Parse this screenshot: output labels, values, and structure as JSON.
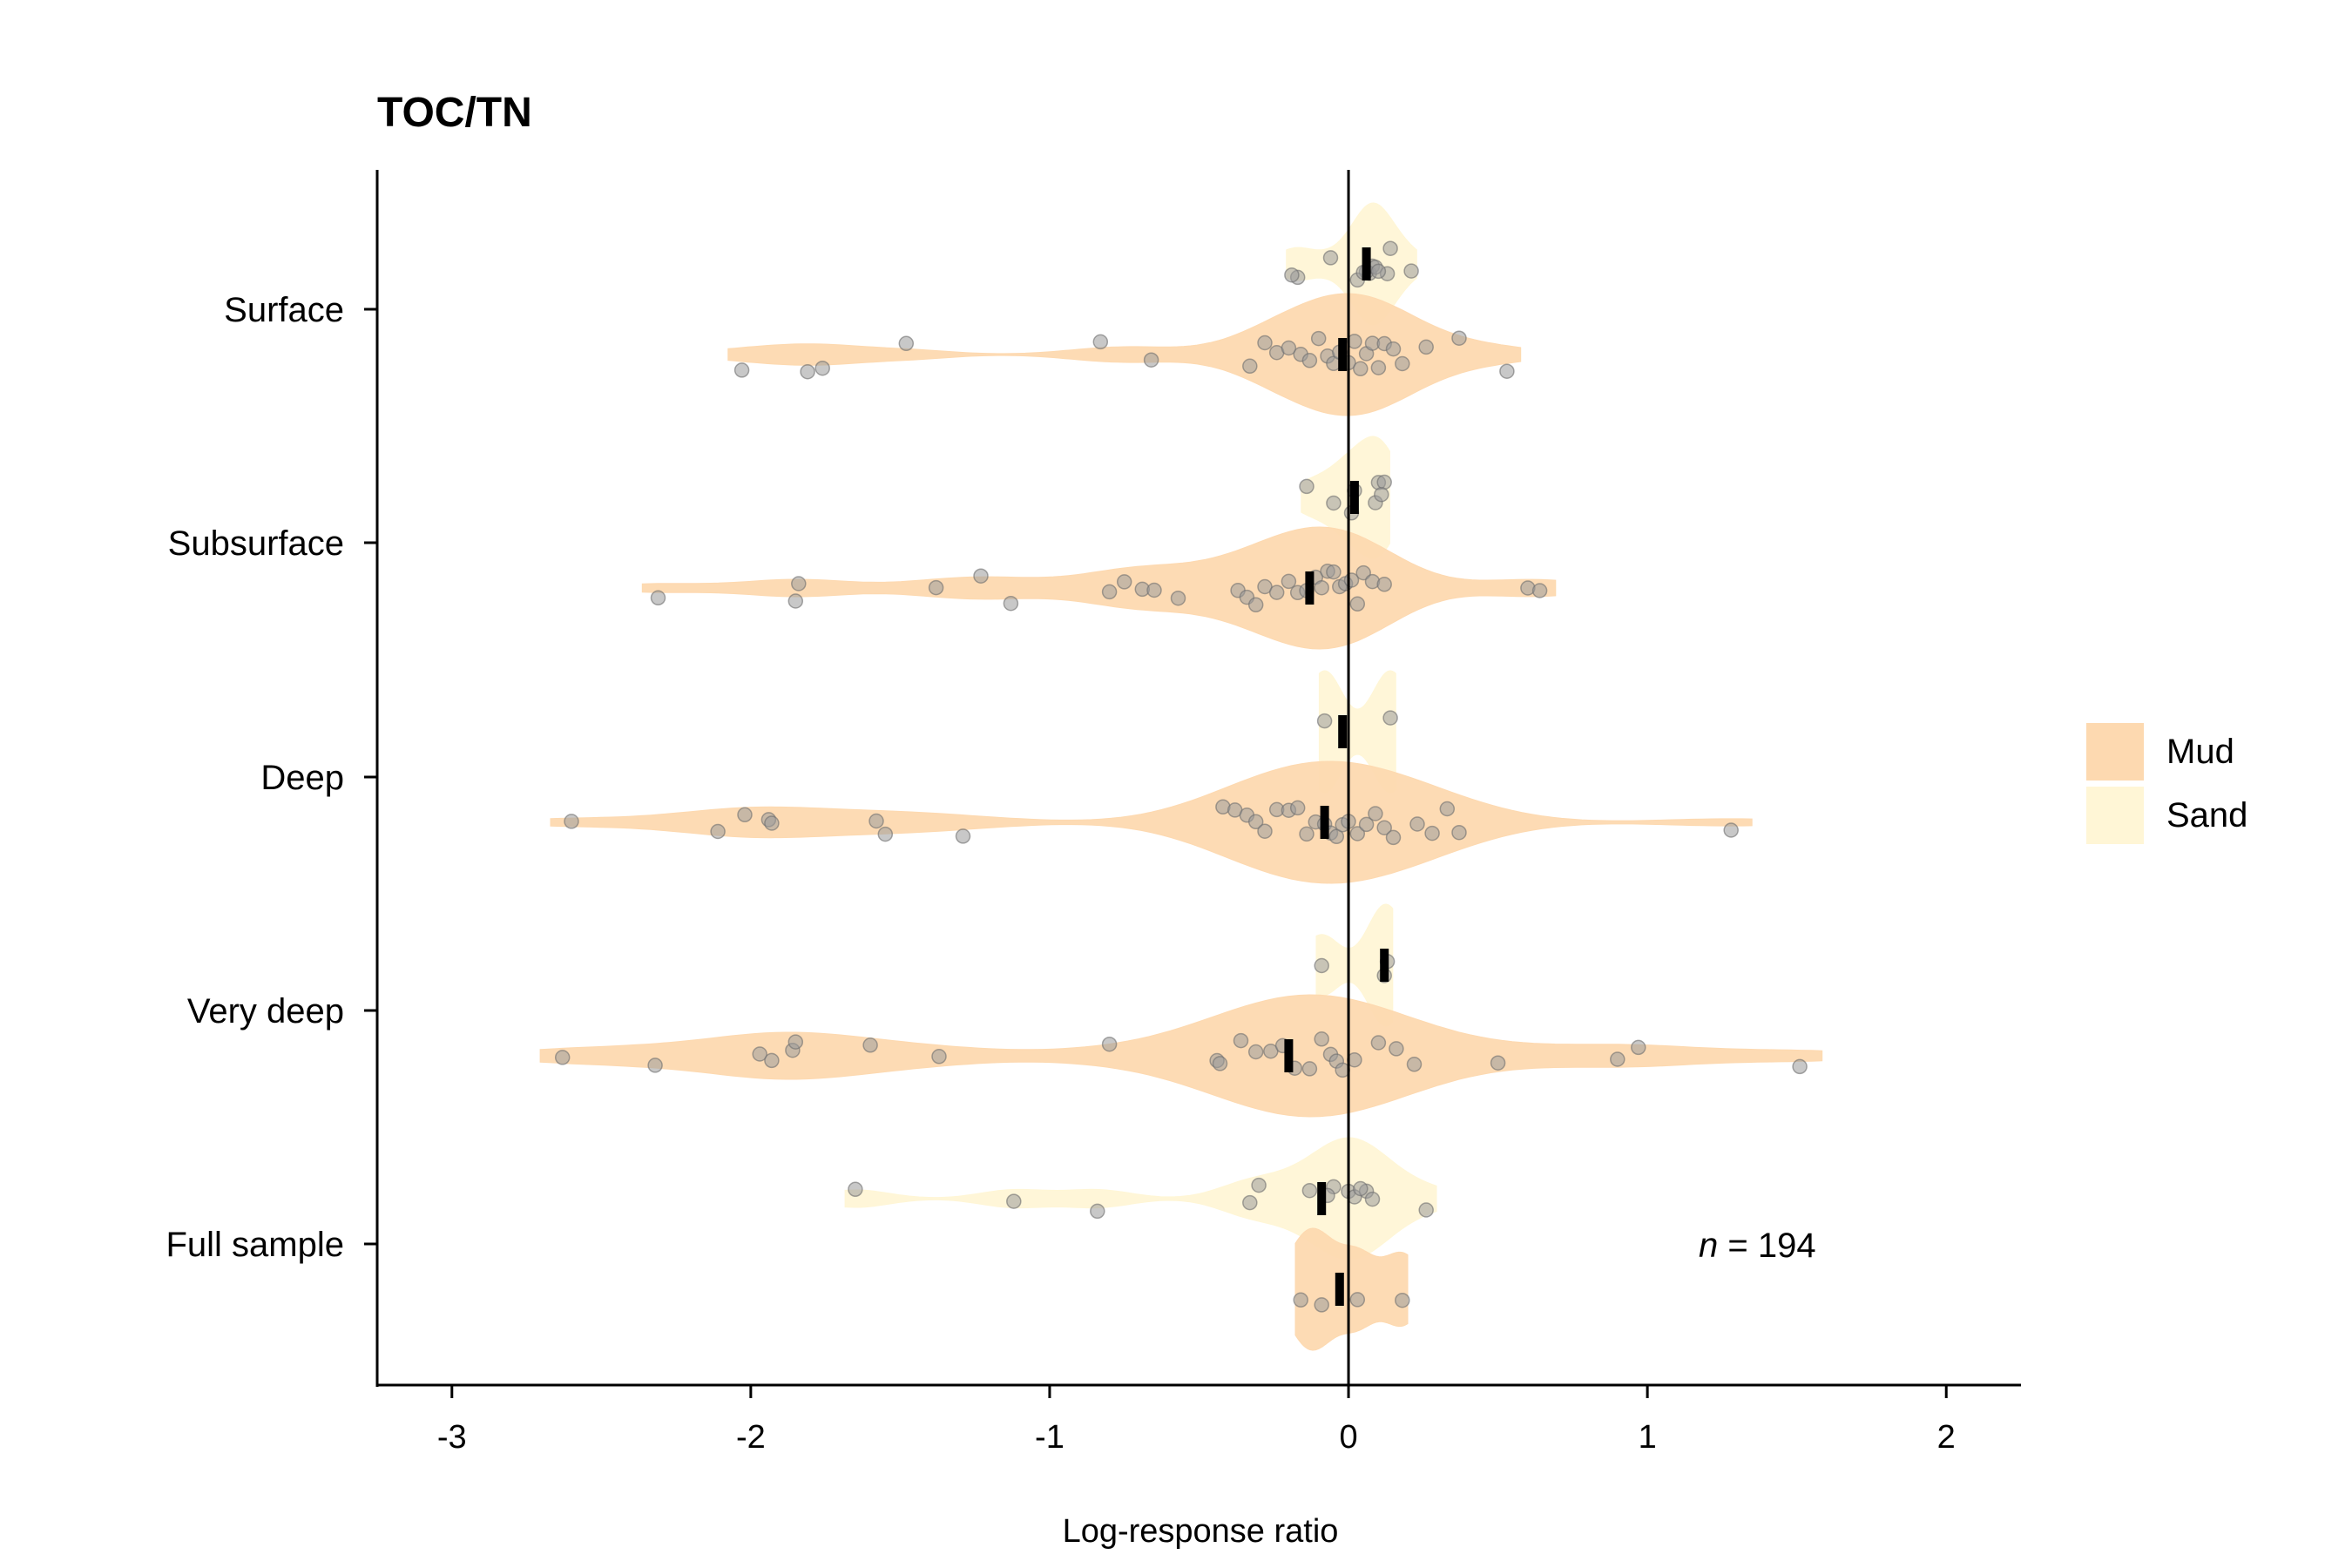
{
  "chart_data": {
    "type": "violin",
    "title": "TOC/TN",
    "xlabel": "Log-response ratio",
    "ylabel": "",
    "xlim": [
      -3.25,
      2.25
    ],
    "x_ticks": [
      -3,
      -2,
      -1,
      0,
      1,
      2
    ],
    "x_tick_labels": [
      "-3",
      "-2",
      "-1",
      "0",
      "1",
      "2"
    ],
    "categories": [
      "Surface",
      "Subsurface",
      "Deep",
      "Very deep",
      "Full sample"
    ],
    "reference_line_x": 0,
    "annotation": {
      "italic": "n",
      "text": " = 194"
    },
    "legend": {
      "position": "right",
      "items": [
        {
          "name": "Mud",
          "color": "#fdd9b0"
        },
        {
          "name": "Sand",
          "color": "#fff6d6"
        }
      ]
    },
    "colors": {
      "Mud": "#fdd9b0",
      "Sand": "#fff6d6",
      "point": "#9a9a9a",
      "median": "#000000"
    },
    "grid": false,
    "groups": [
      {
        "category": "Surface",
        "series": "Sand",
        "median": 0.06,
        "points": [
          -0.17,
          -0.19,
          0.03,
          0.07,
          0.08,
          0.06,
          0.09,
          0.14,
          0.21,
          0.13,
          0.1,
          -0.06,
          0.05
        ]
      },
      {
        "category": "Surface",
        "series": "Mud",
        "median": -0.02,
        "points": [
          -2.03,
          -1.81,
          -1.76,
          -1.48,
          -0.83,
          -0.66,
          -0.33,
          -0.28,
          -0.24,
          -0.2,
          -0.16,
          -0.13,
          -0.1,
          -0.07,
          -0.05,
          -0.03,
          0.0,
          0.02,
          0.04,
          0.06,
          0.08,
          0.1,
          0.12,
          0.15,
          0.18,
          0.26,
          0.37,
          0.53
        ]
      },
      {
        "category": "Subsurface",
        "series": "Sand",
        "median": 0.02,
        "points": [
          -0.14,
          -0.05,
          0.01,
          0.02,
          0.09,
          0.1,
          0.12,
          0.11
        ]
      },
      {
        "category": "Subsurface",
        "series": "Mud",
        "median": -0.13,
        "points": [
          -2.31,
          -1.85,
          -1.84,
          -1.38,
          -1.23,
          -1.13,
          -0.8,
          -0.75,
          -0.69,
          -0.65,
          -0.57,
          -0.37,
          -0.34,
          -0.31,
          -0.28,
          -0.24,
          -0.2,
          -0.17,
          -0.14,
          -0.11,
          -0.09,
          -0.07,
          -0.05,
          -0.03,
          -0.01,
          0.01,
          0.03,
          0.05,
          0.08,
          0.12,
          0.6,
          0.64
        ]
      },
      {
        "category": "Deep",
        "series": "Sand",
        "median": -0.02,
        "points": [
          -0.08,
          0.14
        ]
      },
      {
        "category": "Deep",
        "series": "Mud",
        "median": -0.08,
        "points": [
          -2.6,
          -2.11,
          -2.02,
          -1.94,
          -1.93,
          -1.58,
          -1.55,
          -1.29,
          -0.42,
          -0.38,
          -0.34,
          -0.31,
          -0.28,
          -0.24,
          -0.2,
          -0.17,
          -0.14,
          -0.11,
          -0.08,
          -0.06,
          -0.04,
          -0.02,
          0.0,
          0.03,
          0.06,
          0.09,
          0.12,
          0.15,
          0.23,
          0.28,
          0.33,
          0.37,
          1.28
        ]
      },
      {
        "category": "Very deep",
        "series": "Sand",
        "median": 0.12,
        "points": [
          -0.09,
          0.13,
          0.12
        ]
      },
      {
        "category": "Very deep",
        "series": "Mud",
        "median": -0.2,
        "points": [
          -2.63,
          -2.32,
          -1.97,
          -1.93,
          -1.86,
          -1.85,
          -1.6,
          -1.37,
          -0.8,
          -0.44,
          -0.43,
          -0.36,
          -0.31,
          -0.26,
          -0.22,
          -0.18,
          -0.13,
          -0.09,
          -0.06,
          -0.04,
          -0.02,
          0.02,
          0.1,
          0.16,
          0.22,
          0.5,
          0.9,
          0.97,
          1.51
        ]
      },
      {
        "category": "Full sample",
        "series": "Sand",
        "median": -0.09,
        "points": [
          -1.65,
          -1.12,
          -0.84,
          -0.33,
          -0.3,
          -0.13,
          -0.05,
          0.0,
          0.02,
          0.06,
          0.08,
          0.26,
          -0.07,
          0.04
        ]
      },
      {
        "category": "Full sample",
        "series": "Mud",
        "median": -0.03,
        "points": [
          -0.16,
          -0.09,
          0.03,
          0.18
        ]
      }
    ]
  }
}
